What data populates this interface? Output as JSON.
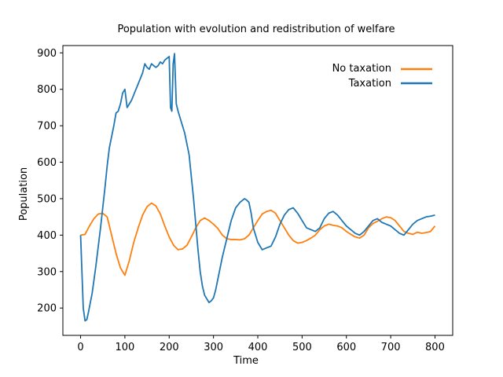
{
  "chart_data": {
    "type": "line",
    "title": "Population with evolution and redistribution of welfare",
    "xlabel": "Time",
    "ylabel": "Population",
    "xlim": [
      -40,
      840
    ],
    "ylim": [
      125,
      920
    ],
    "xticks": [
      0,
      100,
      200,
      300,
      400,
      500,
      600,
      700,
      800
    ],
    "yticks": [
      200,
      300,
      400,
      500,
      600,
      700,
      800,
      900
    ],
    "grid": false,
    "legend_position": "top-right",
    "series": [
      {
        "name": "No taxation",
        "color": "#ff7f0e",
        "x": [
          0,
          10,
          20,
          30,
          40,
          50,
          60,
          70,
          80,
          90,
          100,
          110,
          120,
          130,
          140,
          150,
          160,
          170,
          180,
          190,
          200,
          210,
          220,
          230,
          240,
          250,
          260,
          270,
          280,
          290,
          300,
          310,
          320,
          330,
          340,
          350,
          360,
          370,
          380,
          390,
          400,
          410,
          420,
          430,
          440,
          450,
          460,
          470,
          480,
          490,
          500,
          510,
          520,
          530,
          540,
          550,
          560,
          570,
          580,
          590,
          600,
          610,
          620,
          630,
          640,
          650,
          660,
          670,
          680,
          690,
          700,
          710,
          720,
          730,
          740,
          750,
          760,
          770,
          780,
          790,
          800
        ],
        "y": [
          400,
          402,
          425,
          445,
          458,
          460,
          450,
          400,
          350,
          310,
          290,
          330,
          380,
          420,
          455,
          478,
          488,
          480,
          458,
          425,
          395,
          372,
          360,
          362,
          372,
          395,
          420,
          440,
          447,
          440,
          430,
          418,
          400,
          390,
          388,
          388,
          387,
          390,
          400,
          420,
          440,
          458,
          465,
          468,
          460,
          440,
          420,
          400,
          385,
          378,
          380,
          385,
          392,
          400,
          415,
          425,
          430,
          427,
          425,
          420,
          410,
          402,
          395,
          392,
          400,
          420,
          432,
          438,
          445,
          450,
          448,
          440,
          425,
          410,
          405,
          402,
          408,
          405,
          407,
          410,
          425
        ]
      },
      {
        "name": "Taxation",
        "color": "#1f77b4",
        "x": [
          0,
          3,
          6,
          10,
          14,
          18,
          22,
          26,
          30,
          35,
          40,
          45,
          50,
          55,
          60,
          65,
          70,
          75,
          80,
          85,
          90,
          95,
          100,
          105,
          110,
          115,
          120,
          125,
          130,
          135,
          140,
          145,
          150,
          155,
          160,
          165,
          170,
          175,
          180,
          185,
          190,
          195,
          200,
          203,
          206,
          209,
          212,
          216,
          220,
          225,
          230,
          235,
          240,
          245,
          250,
          255,
          260,
          265,
          270,
          275,
          280,
          285,
          290,
          295,
          300,
          305,
          310,
          320,
          330,
          340,
          350,
          360,
          370,
          375,
          380,
          385,
          390,
          400,
          410,
          420,
          430,
          440,
          450,
          460,
          470,
          480,
          490,
          500,
          510,
          520,
          530,
          540,
          550,
          560,
          570,
          580,
          590,
          600,
          610,
          620,
          630,
          640,
          650,
          660,
          670,
          680,
          690,
          700,
          710,
          720,
          730,
          740,
          750,
          760,
          770,
          780,
          790,
          800
        ],
        "y": [
          400,
          300,
          200,
          165,
          168,
          190,
          215,
          240,
          275,
          320,
          370,
          420,
          475,
          530,
          590,
          640,
          670,
          700,
          735,
          740,
          760,
          790,
          800,
          750,
          760,
          770,
          785,
          800,
          815,
          830,
          845,
          870,
          860,
          855,
          870,
          865,
          860,
          865,
          875,
          870,
          880,
          885,
          890,
          750,
          740,
          870,
          898,
          760,
          740,
          720,
          700,
          680,
          650,
          620,
          560,
          500,
          430,
          360,
          300,
          260,
          235,
          225,
          215,
          220,
          228,
          250,
          280,
          340,
          390,
          440,
          475,
          490,
          500,
          496,
          490,
          460,
          420,
          380,
          360,
          365,
          370,
          395,
          430,
          455,
          470,
          475,
          460,
          440,
          420,
          415,
          410,
          420,
          445,
          460,
          465,
          455,
          440,
          425,
          415,
          405,
          400,
          410,
          425,
          440,
          445,
          435,
          430,
          425,
          415,
          405,
          400,
          415,
          430,
          440,
          445,
          450,
          452,
          455
        ]
      }
    ]
  }
}
